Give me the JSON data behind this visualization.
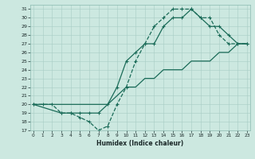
{
  "xlabel": "Humidex (Indice chaleur)",
  "bg_color": "#cce8e0",
  "grid_color": "#a8ccc4",
  "line_color": "#1a6b58",
  "xlim": [
    0,
    23
  ],
  "ylim": [
    17,
    31
  ],
  "yticks": [
    17,
    18,
    19,
    20,
    21,
    22,
    23,
    24,
    25,
    26,
    27,
    28,
    29,
    30,
    31
  ],
  "xticks": [
    0,
    1,
    2,
    3,
    4,
    5,
    6,
    7,
    8,
    9,
    10,
    11,
    12,
    13,
    14,
    15,
    16,
    17,
    18,
    19,
    20,
    21,
    22,
    23
  ],
  "line1_x": [
    0,
    1,
    2,
    3,
    4,
    5,
    6,
    7,
    8,
    9,
    10,
    11,
    12,
    13,
    14,
    15,
    16,
    17,
    18,
    19,
    20,
    21,
    22,
    23
  ],
  "line1_y": [
    20,
    20,
    20,
    19,
    19,
    18.5,
    18,
    17,
    17.5,
    20,
    22,
    25,
    27,
    29,
    30,
    31,
    31,
    31,
    30,
    30,
    28,
    27,
    27,
    27
  ],
  "line2_x": [
    0,
    3,
    4,
    5,
    6,
    7,
    8,
    9,
    10,
    11,
    12,
    13,
    14,
    15,
    16,
    17,
    18,
    19,
    20,
    21,
    22,
    23
  ],
  "line2_y": [
    20,
    19,
    19,
    19,
    19,
    19,
    20,
    22,
    25,
    26,
    27,
    27,
    29,
    30,
    30,
    31,
    30,
    29,
    29,
    28,
    27,
    27
  ],
  "line3_x": [
    0,
    1,
    2,
    3,
    4,
    5,
    6,
    7,
    8,
    9,
    10,
    11,
    12,
    13,
    14,
    15,
    16,
    17,
    18,
    19,
    20,
    21,
    22,
    23
  ],
  "line3_y": [
    20,
    20,
    20,
    20,
    20,
    20,
    20,
    20,
    20,
    21,
    22,
    22,
    23,
    23,
    24,
    24,
    24,
    25,
    25,
    25,
    26,
    26,
    27,
    27
  ]
}
